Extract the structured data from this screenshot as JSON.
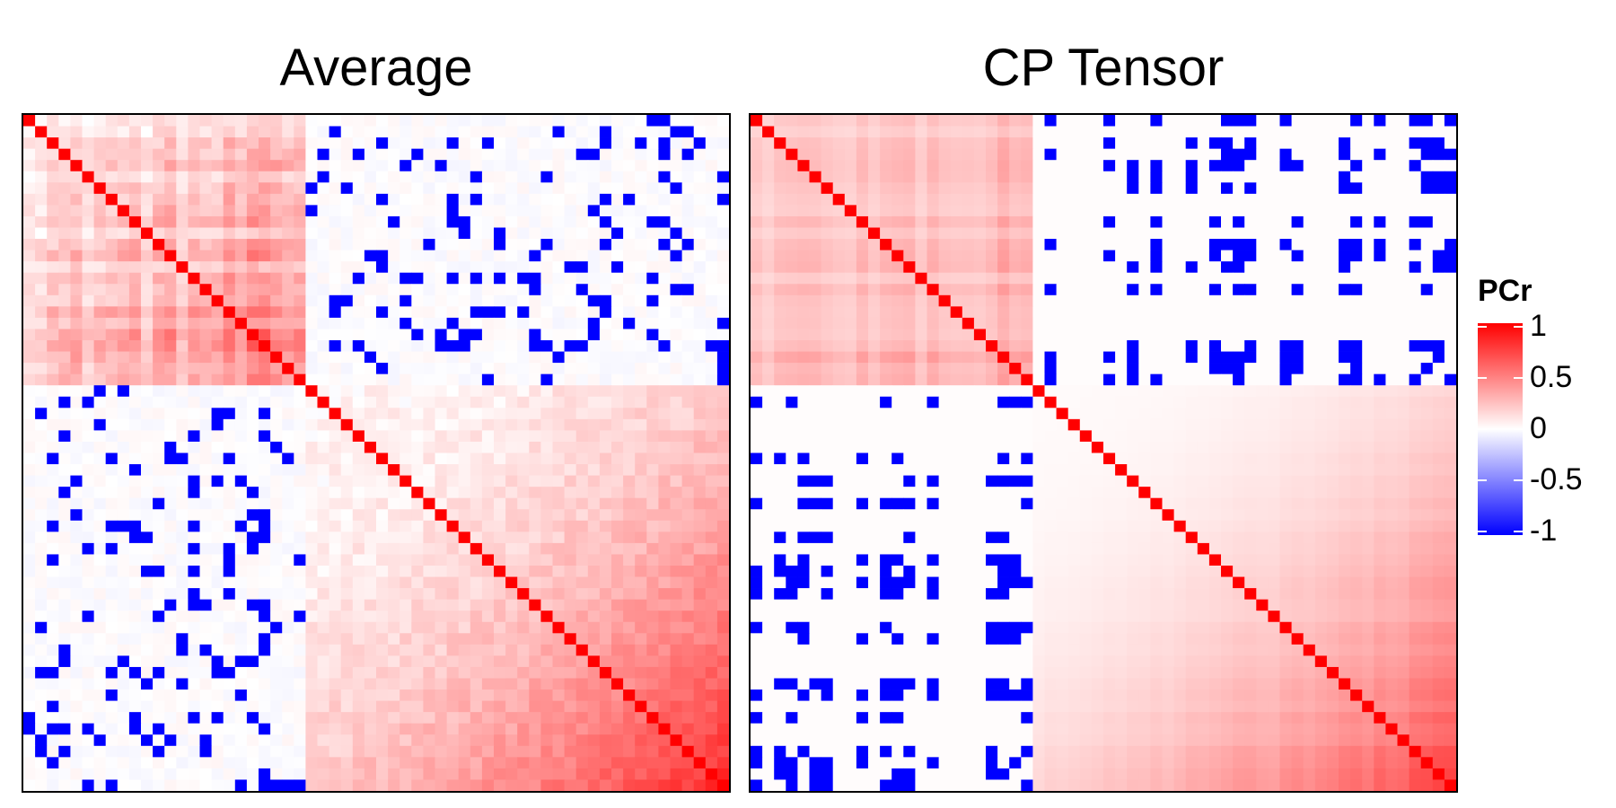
{
  "chart_data": [
    {
      "type": "heatmap",
      "title": "Average",
      "n": 60,
      "block_boundary": 24,
      "structure": {
        "within_first_block": "weak positive (about 0.1 to 0.5), stronger in lower-right of block",
        "within_second_block": "weak positive rising to about 0.9 in lower-right corner",
        "cross_blocks": "mostly near 0 with scattered -1 cells",
        "diagonal": 1
      }
    },
    {
      "type": "heatmap",
      "title": "CP Tensor",
      "n": 60,
      "block_boundary": 24,
      "structure": {
        "within_first_block": "smooth banded positive (about 0.1 to 0.4)",
        "within_second_block": "smooth gradient positive rising to about 0.8 in lower-right corner",
        "cross_blocks": "mostly 0 with structured -1 columns/rows",
        "diagonal": 1
      }
    }
  ],
  "legend": {
    "title": "PCr",
    "ticks": [
      "1",
      "0.5",
      "0",
      "-0.5",
      "-1"
    ],
    "colors": {
      "high": "#ff0000",
      "mid": "#ffffff",
      "low": "#0000ff"
    }
  }
}
